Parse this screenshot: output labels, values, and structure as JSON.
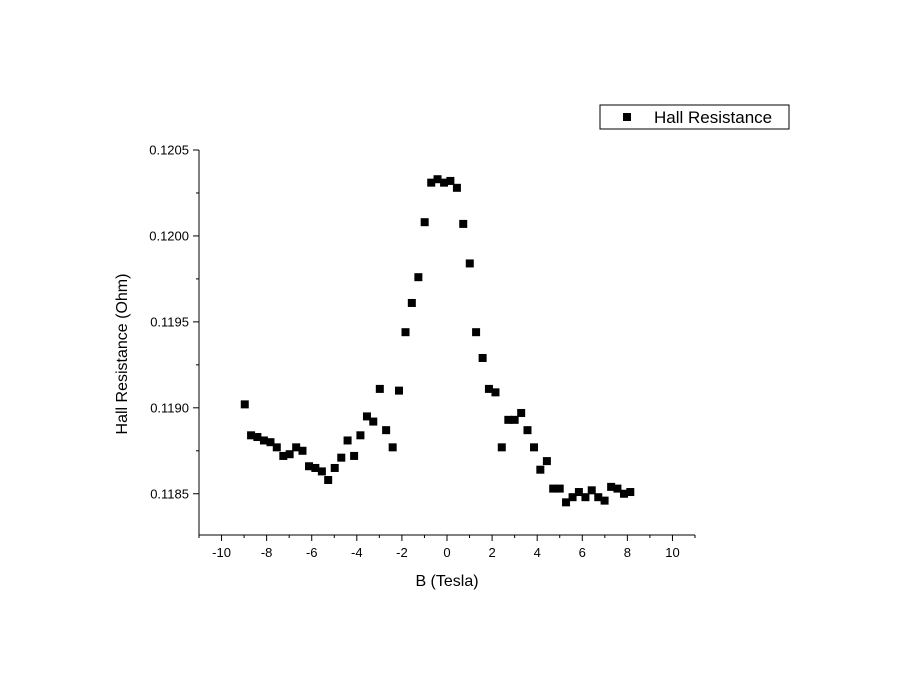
{
  "chart_data": {
    "type": "scatter",
    "xlabel": "B (Tesla)",
    "ylabel": "Hall Resistance (Ohm)",
    "xlim": [
      -11,
      11
    ],
    "ylim": [
      0.11826,
      0.1205
    ],
    "x_ticks": [
      -10,
      -8,
      -6,
      -4,
      -2,
      0,
      2,
      4,
      6,
      8,
      10
    ],
    "x_tick_labels": [
      "-10",
      "-8",
      "-6",
      "-4",
      "-2",
      "0",
      "2",
      "4",
      "6",
      "8",
      "10"
    ],
    "y_ticks": [
      0.1185,
      0.119,
      0.1195,
      0.12,
      0.1205
    ],
    "y_tick_labels": [
      "0.1185",
      "0.1190",
      "0.1195",
      "0.1200",
      "0.1205"
    ],
    "grid": false,
    "legend_position": "top-right",
    "series": [
      {
        "name": "Hall Resistance",
        "color": "#000000",
        "marker": "square",
        "points": [
          [
            -8.97,
            0.11902
          ],
          [
            -8.69,
            0.11884
          ],
          [
            -8.41,
            0.11883
          ],
          [
            -8.12,
            0.11881
          ],
          [
            -7.83,
            0.1188
          ],
          [
            -7.55,
            0.11877
          ],
          [
            -7.26,
            0.11872
          ],
          [
            -6.98,
            0.11873
          ],
          [
            -6.69,
            0.11877
          ],
          [
            -6.41,
            0.11875
          ],
          [
            -6.12,
            0.11866
          ],
          [
            -5.84,
            0.11865
          ],
          [
            -5.55,
            0.11863
          ],
          [
            -5.27,
            0.11858
          ],
          [
            -4.98,
            0.11865
          ],
          [
            -4.69,
            0.11871
          ],
          [
            -4.41,
            0.11881
          ],
          [
            -4.12,
            0.11872
          ],
          [
            -3.84,
            0.11884
          ],
          [
            -3.55,
            0.11895
          ],
          [
            -3.27,
            0.11892
          ],
          [
            -2.98,
            0.11911
          ],
          [
            -2.7,
            0.11887
          ],
          [
            -2.41,
            0.11877
          ],
          [
            -2.13,
            0.1191
          ],
          [
            -1.84,
            0.11944
          ],
          [
            -1.56,
            0.11961
          ],
          [
            -1.27,
            0.11976
          ],
          [
            -0.99,
            0.12008
          ],
          [
            -0.7,
            0.12031
          ],
          [
            -0.42,
            0.12033
          ],
          [
            -0.13,
            0.12031
          ],
          [
            0.15,
            0.12032
          ],
          [
            0.44,
            0.12028
          ],
          [
            0.72,
            0.12007
          ],
          [
            1.01,
            0.11984
          ],
          [
            1.29,
            0.11944
          ],
          [
            1.58,
            0.11929
          ],
          [
            1.86,
            0.11911
          ],
          [
            2.15,
            0.11909
          ],
          [
            2.43,
            0.11877
          ],
          [
            2.72,
            0.11893
          ],
          [
            3.0,
            0.11893
          ],
          [
            3.29,
            0.11897
          ],
          [
            3.57,
            0.11887
          ],
          [
            3.86,
            0.11877
          ],
          [
            4.14,
            0.11864
          ],
          [
            4.43,
            0.11869
          ],
          [
            4.71,
            0.11853
          ],
          [
            5.0,
            0.11853
          ],
          [
            5.28,
            0.11845
          ],
          [
            5.57,
            0.11848
          ],
          [
            5.85,
            0.11851
          ],
          [
            6.14,
            0.11848
          ],
          [
            6.42,
            0.11852
          ],
          [
            6.71,
            0.11848
          ],
          [
            6.99,
            0.11846
          ],
          [
            7.28,
            0.11854
          ],
          [
            7.56,
            0.11853
          ],
          [
            7.85,
            0.1185
          ],
          [
            8.13,
            0.11851
          ]
        ]
      }
    ]
  }
}
